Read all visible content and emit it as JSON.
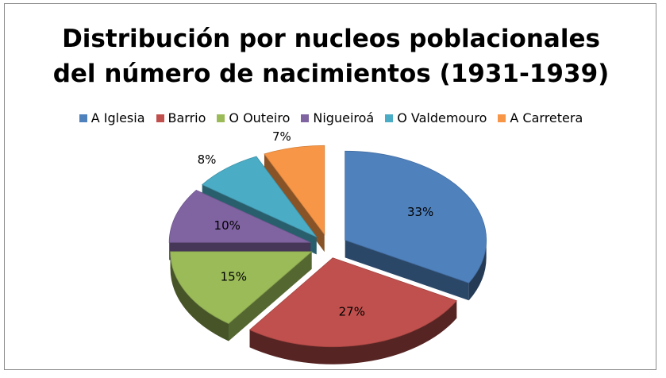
{
  "chart_data": {
    "type": "pie",
    "title": "Distribución por nucleos poblacionales",
    "subtitle": "del número de nacimientos (1931-1939)",
    "legend_position": "top",
    "exploded": true,
    "three_d": true,
    "slices": [
      {
        "label": "A Iglesia",
        "value": 33,
        "display": "33%",
        "color": "#4f81bd"
      },
      {
        "label": "Barrio",
        "value": 27,
        "display": "27%",
        "color": "#c0504d"
      },
      {
        "label": "O Outeiro",
        "value": 15,
        "display": "15%",
        "color": "#9bbb59"
      },
      {
        "label": "Nigueiroá",
        "value": 10,
        "display": "10%",
        "color": "#8064a2"
      },
      {
        "label": "O Valdemouro",
        "value": 8,
        "display": "8%",
        "color": "#4bacc6"
      },
      {
        "label": "A Carretera",
        "value": 7,
        "display": "7%",
        "color": "#f79646"
      }
    ]
  }
}
